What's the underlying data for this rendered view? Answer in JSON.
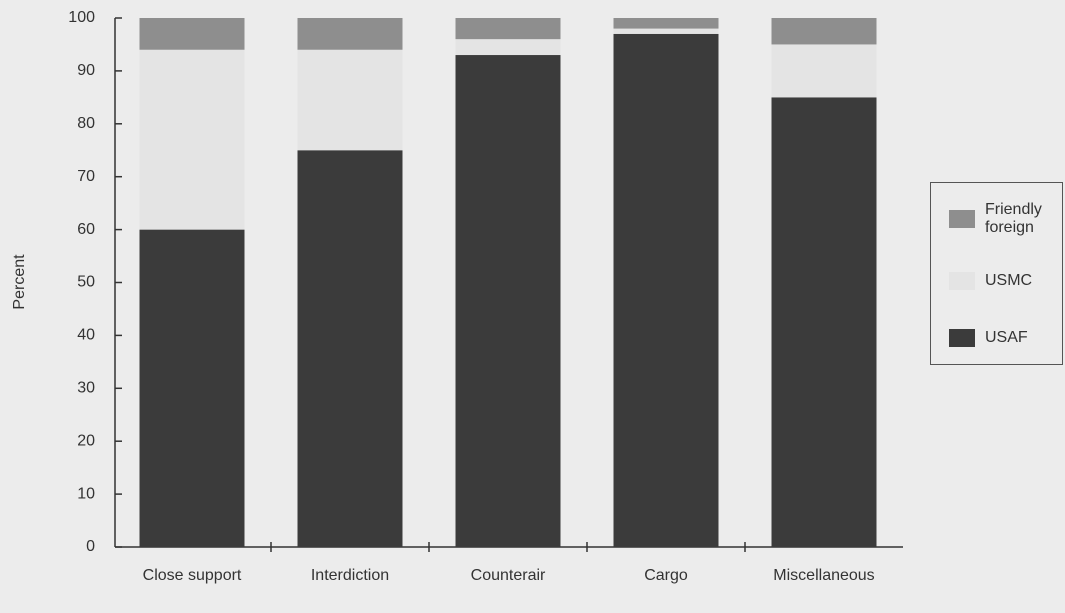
{
  "chart_data": {
    "type": "stacked-bar",
    "y_label": "Percent",
    "categories": [
      "Close support",
      "Interdiction",
      "Counterair",
      "Cargo",
      "Miscellaneous"
    ],
    "series": [
      {
        "name": "USAF",
        "color": "#3b3b3b",
        "values": [
          60,
          75,
          93,
          97,
          85
        ]
      },
      {
        "name": "USMC",
        "color": "#e4e4e4",
        "values": [
          34,
          19,
          3,
          1,
          10
        ]
      },
      {
        "name": "Friendly foreign",
        "color": "#8e8e8e",
        "values": [
          6,
          6,
          4,
          2,
          5
        ]
      }
    ],
    "ylim": [
      0,
      100
    ],
    "yticks": [
      0,
      10,
      20,
      30,
      40,
      50,
      60,
      70,
      80,
      90,
      100
    ],
    "legend": "right"
  }
}
